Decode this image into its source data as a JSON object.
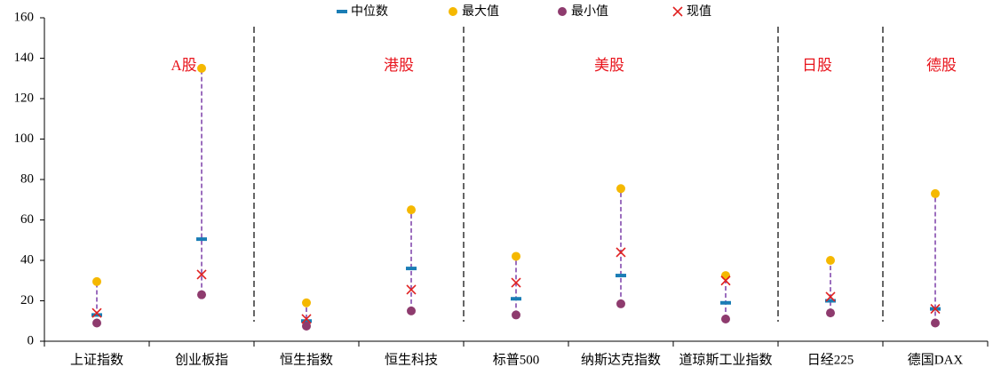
{
  "chart_data": {
    "type": "range-dot",
    "categories": [
      "上证指数",
      "创业板指",
      "恒生指数",
      "恒生科技",
      "标普500",
      "纳斯达克指数",
      "道琼斯工业指数",
      "日经225",
      "德国DAX"
    ],
    "series": [
      {
        "name": "中位数",
        "color": "#1a7db5",
        "values": [
          13,
          50.5,
          10,
          36,
          21,
          32.5,
          19,
          20,
          16
        ]
      },
      {
        "name": "最大值",
        "color": "#f5b800",
        "values": [
          29.5,
          135,
          19,
          65,
          42,
          75.5,
          32.5,
          40,
          73
        ]
      },
      {
        "name": "最小值",
        "color": "#8e3b6e",
        "values": [
          9,
          23,
          7.5,
          15,
          13,
          18.5,
          11,
          14,
          9
        ]
      },
      {
        "name": "现值",
        "color": "#e02020",
        "values": [
          14,
          33,
          11,
          25.5,
          29,
          44,
          30,
          22,
          16
        ]
      }
    ],
    "groups": [
      {
        "label": "A股"
      },
      {
        "label": "港股"
      },
      {
        "label": "美股"
      },
      {
        "label": "日股"
      },
      {
        "label": "德股"
      }
    ],
    "range_color": "#7b3fa8",
    "ylim": [
      0,
      160
    ],
    "yticks": [
      0,
      20,
      40,
      60,
      80,
      100,
      120,
      140,
      160
    ],
    "legend": "top"
  }
}
